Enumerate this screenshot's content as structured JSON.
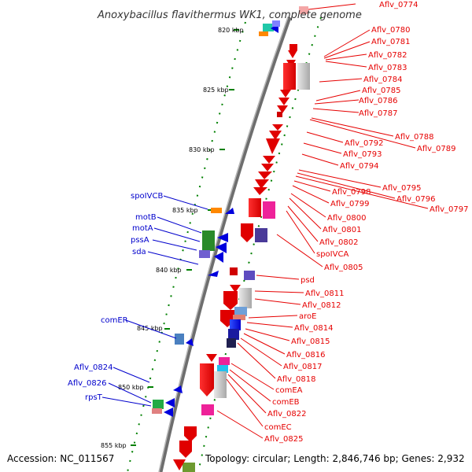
{
  "title": "Anoxybacillus flavithermus WK1, complete genome",
  "footer": {
    "accession": "Accession: NC_011567",
    "summary": "Topology: circular; Length: 2,846,746 bp; Genes: 2,932"
  },
  "scale_labels": [
    "820 kbp",
    "825 kbp",
    "830 kbp",
    "835 kbp",
    "840 kbp",
    "845 kbp",
    "850 kbp",
    "855 kbp"
  ],
  "right_genes": [
    "Aflv_0774",
    "Aflv_0780",
    "Aflv_0781",
    "Aflv_0782",
    "Aflv_0783",
    "Aflv_0784",
    "Aflv_0785",
    "Aflv_0786",
    "Aflv_0787",
    "Aflv_0788",
    "Aflv_0789",
    "Aflv_0792",
    "Aflv_0793",
    "Aflv_0794",
    "Aflv_0795",
    "Aflv_0796",
    "Aflv_0797",
    "Aflv_0798",
    "Aflv_0799",
    "Aflv_0800",
    "Aflv_0801",
    "Aflv_0802",
    "spoIVCA",
    "Aflv_0805",
    "psd",
    "Aflv_0811",
    "Aflv_0812",
    "aroE",
    "Aflv_0814",
    "Aflv_0815",
    "Aflv_0816",
    "Aflv_0817",
    "Aflv_0818",
    "comEA",
    "comEB",
    "Aflv_0822",
    "comEC",
    "Aflv_0825"
  ],
  "left_genes": [
    "spoIVCB",
    "motB",
    "motA",
    "pssA",
    "sda",
    "comER",
    "Aflv_0824",
    "Aflv_0826",
    "rpsT"
  ],
  "colors": {
    "forward_label": "#e60000",
    "reverse_label": "#0000cc",
    "backbone": "#7a7a7a",
    "tick": "#008000"
  }
}
